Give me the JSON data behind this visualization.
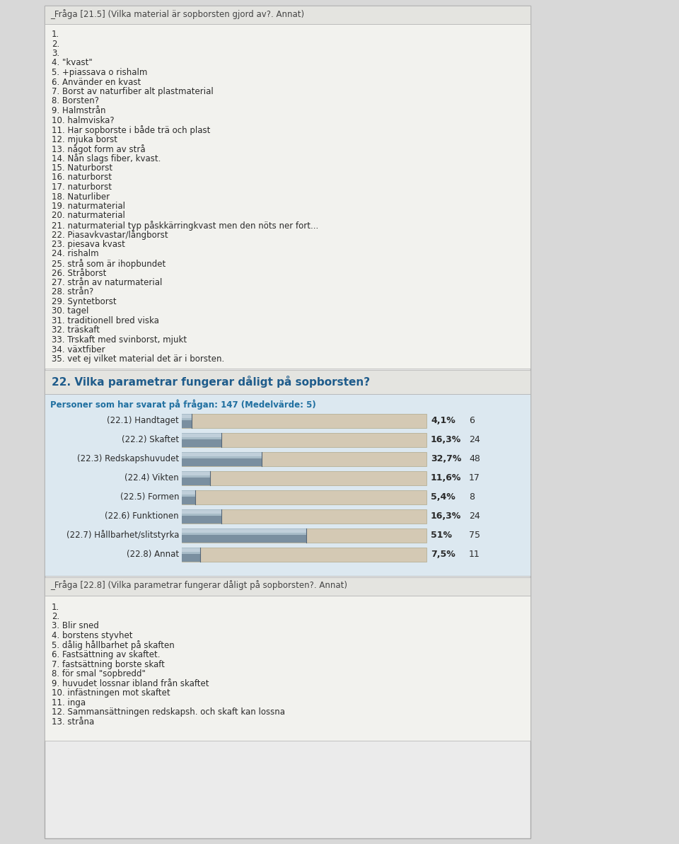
{
  "page_bg": "#d8d8d8",
  "content_bg": "#f2f2f0",
  "section1_title": "_Fråga [21.5] (Vilka material är sopborsten gjord av?. Annat)",
  "section1_items": [
    "1.",
    "2.",
    "3.",
    "4. \"kvast\"",
    "5. +piassava o rishalm",
    "6. Använder en kvast",
    "7. Borst av naturfiber alt plastmaterial",
    "8. Borsten?",
    "9. Halmstrån",
    "10. halmviska?",
    "11. Har sopborste i både trä och plast",
    "12. mjuka borst",
    "13. något form av strå",
    "14. Nån slags fiber, kvast.",
    "15. Naturborst",
    "16. naturborst",
    "17. naturborst",
    "18. Naturliber",
    "19. naturmaterial",
    "20. naturmaterial",
    "21. naturmaterial typ påskkärringkvast men den nöts ner fort...",
    "22. Piasavkvastar/långborst",
    "23. piesava kvast",
    "24. rishalm",
    "25. strå som är ihopbundet",
    "26. Stråborst",
    "27. strån av naturmaterial",
    "28. strån?",
    "29. Syntetborst",
    "30. tagel",
    "31. traditionell bred viska",
    "32. träskaft",
    "33. Trskaft med svinborst, mjukt",
    "34. växtfiber",
    "35. vet ej vilket material det är i borsten."
  ],
  "section2_title": "22. Vilka parametrar fungerar dåligt på sopborsten?",
  "section2_subtitle": "Personer som har svarat på frågan: 147 (Medelvärde: 5)",
  "bar_labels": [
    "(22.1) Handtaget",
    "(22.2) Skaftet",
    "(22.3) Redskapshuvudet",
    "(22.4) Vikten",
    "(22.5) Formen",
    "(22.6) Funktionen",
    "(22.7) Hållbarhet/slitstyrka",
    "(22.8) Annat"
  ],
  "bar_percentages": [
    4.1,
    16.3,
    32.7,
    11.6,
    5.4,
    16.3,
    51.0,
    7.5
  ],
  "bar_counts": [
    6,
    24,
    48,
    17,
    8,
    24,
    75,
    11
  ],
  "bar_pct_labels": [
    "4,1%",
    "16,3%",
    "32,7%",
    "11,6%",
    "5,4%",
    "16,3%",
    "51%",
    "7,5%"
  ],
  "section3_title": "_Fråga [22.8] (Vilka parametrar fungerar dåligt på sopborsten?. Annat)",
  "section3_items": [
    "1.",
    "2.",
    "3. Blir sned",
    "4. borstens styvhet",
    "5. dålig hållbarhet på skaften",
    "6. Fastsättning av skaftet.",
    "7. fastsättning borste skaft",
    "8. för smal \"sopbredd\"",
    "9. huvudet lossnar ibland från skaftet",
    "10. infästningen mot skaftet",
    "11. inga",
    "12. Sammansättningen redskapsh. och skaft kan lossna",
    "13. stråna"
  ],
  "section_title_color": "#1f5c8b",
  "subtitle_color": "#1f6fa0",
  "text_color": "#2a2a2a",
  "header_bg": "#e4e4e0",
  "chart_bg": "#dce8f0",
  "bar_bg_color": "#d4c9b4",
  "bar_fill_dark": "#7a8fa0",
  "bar_fill_light": "#a8bcc8",
  "bar_fill_top": "#c0cfda",
  "item_fontsize": 8.5,
  "label_fontsize": 8.5
}
